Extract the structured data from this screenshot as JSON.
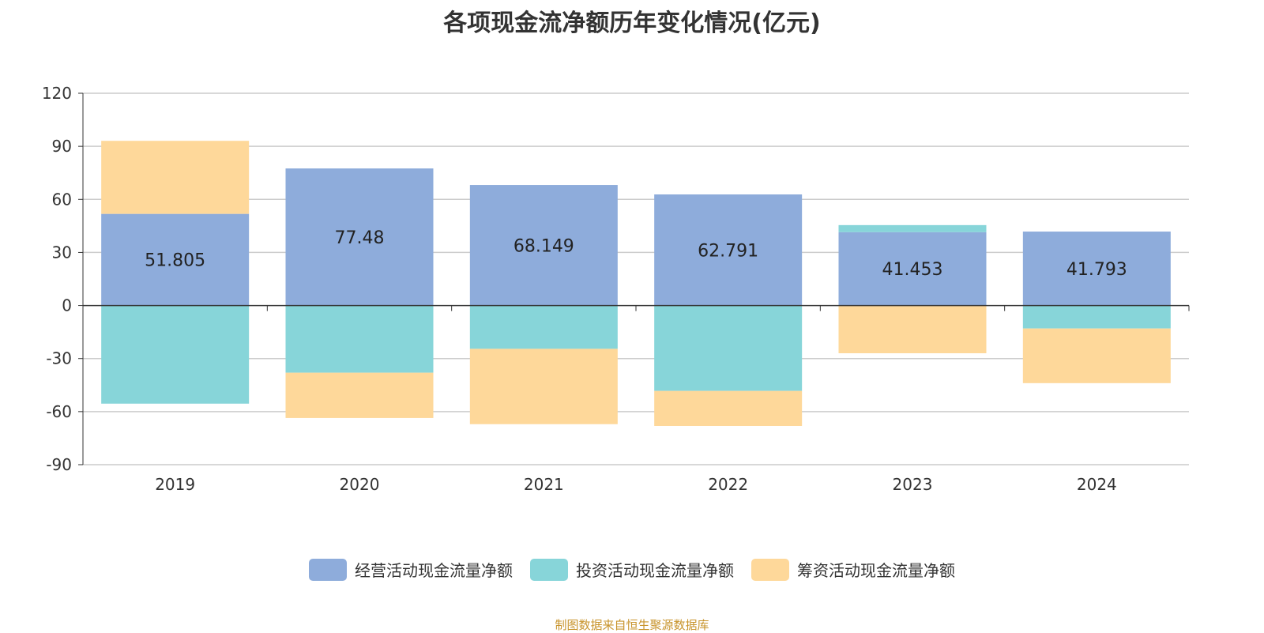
{
  "chart_data": {
    "type": "bar",
    "stacked": true,
    "title": "各项现金流净额历年变化情况(亿元)",
    "categories": [
      "2019",
      "2020",
      "2021",
      "2022",
      "2023",
      "2024"
    ],
    "series": [
      {
        "name": "经营活动现金流量净额",
        "color": "#8eacdb",
        "values": [
          51.805,
          77.48,
          68.149,
          62.791,
          41.453,
          41.793
        ],
        "labels": [
          "51.805",
          "77.48",
          "68.149",
          "62.791",
          "41.453",
          "41.793"
        ]
      },
      {
        "name": "投资活动现金流量净额",
        "color": "#87d5d9",
        "values": [
          -55.5,
          -38.0,
          -24.5,
          -48.3,
          4.0,
          -13.0
        ]
      },
      {
        "name": "筹资活动现金流量净额",
        "color": "#fed89a",
        "values": [
          41.3,
          -25.6,
          -42.6,
          -19.8,
          -27.0,
          -30.9
        ]
      }
    ],
    "ylim": [
      -90,
      120
    ],
    "yticks": [
      "120",
      "90",
      "60",
      "30",
      "0",
      "-30",
      "-60",
      "-90"
    ],
    "grid": true,
    "legend_position": "bottom"
  },
  "footer": "制图数据来自恒生聚源数据库"
}
